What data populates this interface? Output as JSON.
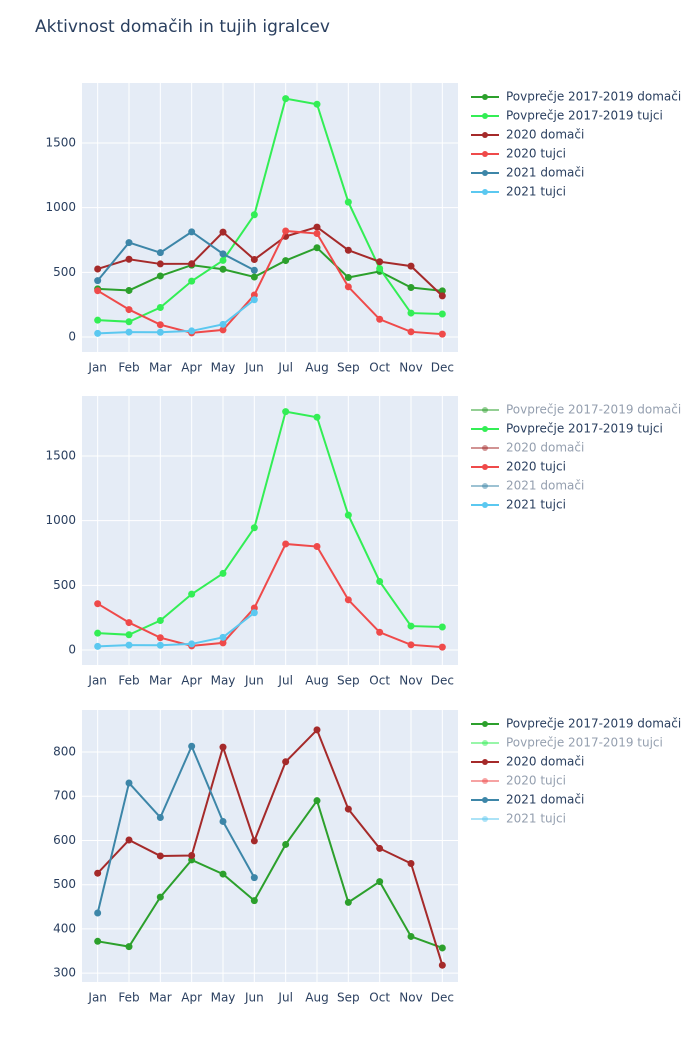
{
  "title": "Aktivnost domačih in tujih igralcev",
  "chart_data": [
    {
      "type": "line",
      "categories": [
        "Jan",
        "Feb",
        "Mar",
        "Apr",
        "May",
        "Jun",
        "Jul",
        "Aug",
        "Sep",
        "Oct",
        "Nov",
        "Dec"
      ],
      "ylim": [
        -116,
        1964
      ],
      "yticks": [
        0,
        500,
        1000,
        1500
      ],
      "grid": true,
      "series": [
        {
          "name": "Povprečje 2017-2019 domači",
          "color": "#2ca02c",
          "visible": true,
          "values": [
            372,
            360,
            472,
            556,
            524,
            464,
            591,
            690,
            460,
            507,
            383,
            357
          ]
        },
        {
          "name": "Povprečje 2017-2019 tujci",
          "color": "#33ee55",
          "visible": true,
          "values": [
            130,
            118,
            228,
            432,
            592,
            945,
            1843,
            1800,
            1043,
            530,
            185,
            178
          ]
        },
        {
          "name": "2020 domači",
          "color": "#a52a2a",
          "visible": true,
          "values": [
            526,
            601,
            565,
            566,
            811,
            599,
            778,
            850,
            671,
            582,
            548,
            318
          ]
        },
        {
          "name": "2020 tujci",
          "color": "#ef4a4a",
          "visible": true,
          "values": [
            358,
            212,
            95,
            32,
            55,
            325,
            820,
            800,
            388,
            137,
            40,
            22
          ]
        },
        {
          "name": "2021 domači",
          "color": "#3d86a8",
          "visible": true,
          "values": [
            436,
            730,
            652,
            813,
            643,
            516,
            null,
            null,
            null,
            null,
            null,
            null
          ]
        },
        {
          "name": "2021 tujci",
          "color": "#5bc8f0",
          "visible": true,
          "values": [
            28,
            38,
            37,
            47,
            98,
            288,
            null,
            null,
            null,
            null,
            null,
            null
          ]
        }
      ]
    },
    {
      "type": "line",
      "categories": [
        "Jan",
        "Feb",
        "Mar",
        "Apr",
        "May",
        "Jun",
        "Jul",
        "Aug",
        "Sep",
        "Oct",
        "Nov",
        "Dec"
      ],
      "ylim": [
        -116,
        1964
      ],
      "yticks": [
        0,
        500,
        1000,
        1500
      ],
      "grid": true,
      "series": [
        {
          "name": "Povprečje 2017-2019 domači",
          "color": "#2ca02c",
          "visible": false
        },
        {
          "name": "Povprečje 2017-2019 tujci",
          "color": "#33ee55",
          "visible": true,
          "values": [
            130,
            118,
            228,
            432,
            592,
            945,
            1843,
            1800,
            1043,
            530,
            185,
            178
          ]
        },
        {
          "name": "2020 domači",
          "color": "#a52a2a",
          "visible": false
        },
        {
          "name": "2020 tujci",
          "color": "#ef4a4a",
          "visible": true,
          "values": [
            358,
            212,
            95,
            32,
            55,
            325,
            820,
            800,
            388,
            137,
            40,
            22
          ]
        },
        {
          "name": "2021 domači",
          "color": "#3d86a8",
          "visible": false
        },
        {
          "name": "2021 tujci",
          "color": "#5bc8f0",
          "visible": true,
          "values": [
            28,
            38,
            37,
            47,
            98,
            288,
            null,
            null,
            null,
            null,
            null,
            null
          ]
        }
      ]
    },
    {
      "type": "line",
      "categories": [
        "Jan",
        "Feb",
        "Mar",
        "Apr",
        "May",
        "Jun",
        "Jul",
        "Aug",
        "Sep",
        "Oct",
        "Nov",
        "Dec"
      ],
      "ylim": [
        280,
        895
      ],
      "yticks": [
        300,
        400,
        500,
        600,
        700,
        800
      ],
      "grid": true,
      "series": [
        {
          "name": "Povprečje 2017-2019 domači",
          "color": "#2ca02c",
          "visible": true,
          "values": [
            372,
            360,
            472,
            556,
            524,
            464,
            591,
            690,
            460,
            507,
            383,
            357
          ]
        },
        {
          "name": "Povprečje 2017-2019 tujci",
          "color": "#33ee55",
          "visible": false
        },
        {
          "name": "2020 domači",
          "color": "#a52a2a",
          "visible": true,
          "values": [
            526,
            601,
            565,
            566,
            811,
            599,
            778,
            850,
            671,
            582,
            548,
            318
          ]
        },
        {
          "name": "2020 tujci",
          "color": "#ef4a4a",
          "visible": false
        },
        {
          "name": "2021 domači",
          "color": "#3d86a8",
          "visible": true,
          "values": [
            436,
            730,
            652,
            813,
            643,
            516,
            null,
            null,
            null,
            null,
            null,
            null
          ]
        },
        {
          "name": "2021 tujci",
          "color": "#5bc8f0",
          "visible": false
        }
      ]
    }
  ]
}
